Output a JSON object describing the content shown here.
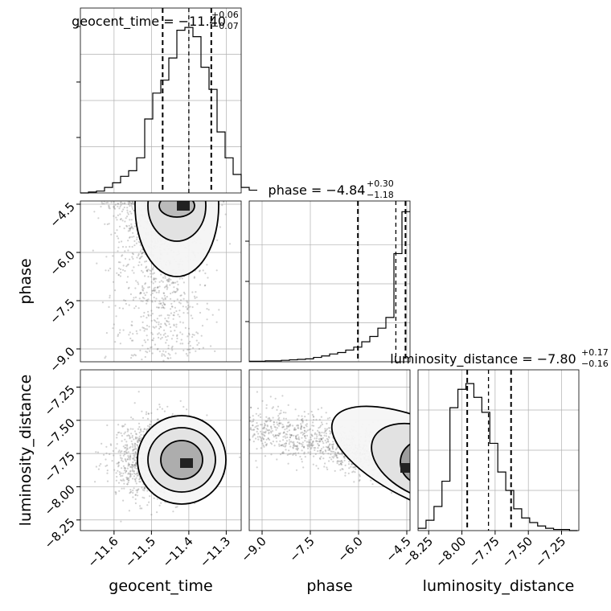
{
  "chart_data": {
    "type": "corner",
    "parameters": [
      "geocent_time",
      "phase",
      "luminosity_distance"
    ],
    "panel_titles": [
      {
        "param": "geocent_time",
        "text": "geocent_time = −11.40",
        "sup": "+0.06",
        "sub": "−0.07"
      },
      {
        "param": "phase",
        "text": "phase = −4.84",
        "sup": "+0.30",
        "sub": "−1.18"
      },
      {
        "param": "luminosity_distance",
        "text": "luminosity_distance = −7.80",
        "sup": "+0.17",
        "sub": "−0.16"
      }
    ],
    "axis_labels": {
      "x": [
        "geocent_time",
        "phase",
        "luminosity_distance"
      ],
      "y": [
        "phase",
        "luminosity_distance"
      ]
    },
    "ranges": {
      "geocent_time": [
        -11.69,
        -11.26
      ],
      "phase": [
        -9.4,
        -4.4
      ],
      "luminosity_distance": [
        -8.33,
        -7.12
      ]
    },
    "ticks": {
      "geocent_time": {
        "values": [
          -11.6,
          -11.5,
          -11.4,
          -11.3
        ],
        "labels": [
          "−11.6",
          "−11.5",
          "−11.4",
          "−11.3"
        ]
      },
      "phase": {
        "values": [
          -9.0,
          -7.5,
          -6.0,
          -4.5
        ],
        "labels": [
          "−9.0",
          "−7.5",
          "−6.0",
          "−4.5"
        ]
      },
      "luminosity_distance": {
        "values": [
          -8.25,
          -8.0,
          -7.75,
          -7.5,
          -7.25
        ],
        "labels": [
          "−8.25",
          "−8.00",
          "−7.75",
          "−7.50",
          "−7.25"
        ]
      }
    },
    "quantiles": {
      "geocent_time": [
        -11.47,
        -11.4,
        -11.34
      ],
      "phase": [
        -6.02,
        -4.84,
        -4.54
      ],
      "luminosity_distance": [
        -7.96,
        -7.8,
        -7.63
      ]
    },
    "hist_1d": {
      "geocent_time": {
        "bin_edges_start": -11.69,
        "bin_width": 0.0215,
        "counts": [
          0,
          1,
          2,
          6,
          11,
          18,
          24,
          38,
          80,
          108,
          122,
          146,
          176,
          179,
          169,
          136,
          112,
          66,
          38,
          20,
          6,
          3
        ]
      },
      "phase": {
        "bin_edges_start": -9.4,
        "bin_width": 0.25,
        "counts": [
          1,
          1,
          2,
          2,
          3,
          4,
          5,
          6,
          9,
          12,
          16,
          19,
          24,
          30,
          41,
          52,
          69,
          91,
          222,
          308
        ]
      },
      "luminosity_distance": {
        "bin_edges_start": -8.33,
        "bin_width": 0.06,
        "counts": [
          2,
          9,
          21,
          43,
          107,
          123,
          128,
          116,
          103,
          76,
          51,
          35,
          19,
          11,
          7,
          4,
          2,
          1,
          1,
          0
        ]
      }
    },
    "contours_2d": [
      {
        "x": "geocent_time",
        "y": "phase",
        "center": [
          -11.4,
          -4.7
        ],
        "levels": 3
      },
      {
        "x": "geocent_time",
        "y": "luminosity_distance",
        "center": [
          -11.4,
          -7.8
        ],
        "levels": 3
      },
      {
        "x": "phase",
        "y": "luminosity_distance",
        "center": [
          -4.7,
          -7.8
        ],
        "levels": 3
      }
    ],
    "grid": true
  }
}
